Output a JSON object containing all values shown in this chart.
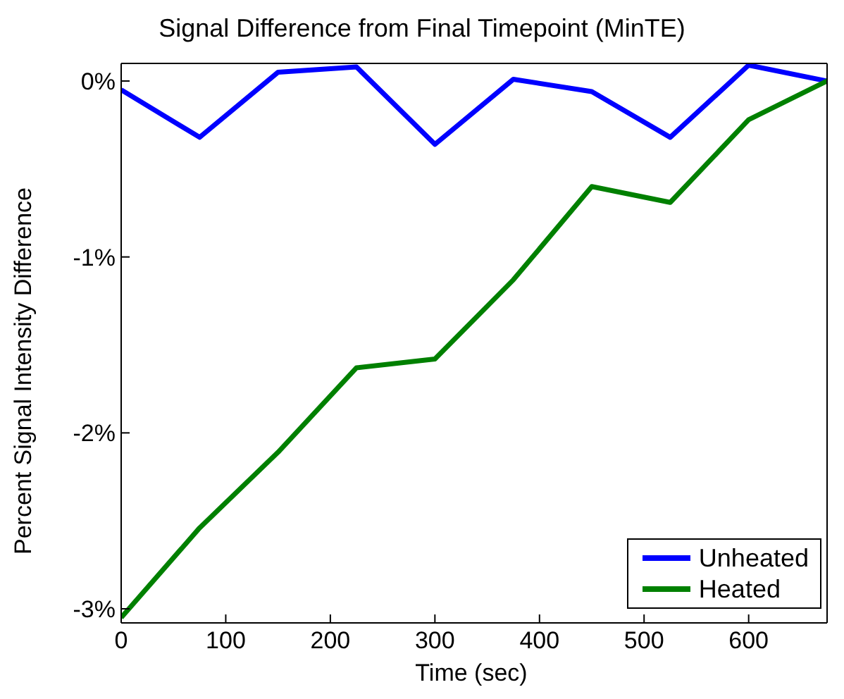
{
  "chart_data": {
    "type": "line",
    "title": "Signal Difference from Final Timepoint (MinTE)",
    "xlabel": "Time (sec)",
    "ylabel": "Percent Signal Intensity Difference",
    "x": [
      0,
      75,
      150,
      225,
      300,
      375,
      450,
      525,
      600,
      675
    ],
    "series": [
      {
        "name": "Unheated",
        "color": "#0000ff",
        "values": [
          -0.05,
          -0.32,
          0.05,
          0.08,
          -0.36,
          0.01,
          -0.06,
          -0.32,
          0.09,
          0
        ]
      },
      {
        "name": "Heated",
        "color": "#008000",
        "values": [
          -3.05,
          -2.54,
          -2.11,
          -1.63,
          -1.58,
          -1.13,
          -0.6,
          -0.69,
          -0.22,
          0
        ]
      }
    ],
    "xlim": [
      0,
      675
    ],
    "xticks": [
      0,
      100,
      200,
      300,
      400,
      500,
      600
    ],
    "ylim": [
      -3.08,
      0.1
    ],
    "yticks": [
      {
        "value": -3,
        "label": "-3%"
      },
      {
        "value": -2,
        "label": "-2%"
      },
      {
        "value": -1,
        "label": "-1%"
      },
      {
        "value": 0,
        "label": "0%"
      }
    ],
    "grid": false,
    "legend": "bottom right",
    "marker": "none",
    "line_style": "solid"
  }
}
